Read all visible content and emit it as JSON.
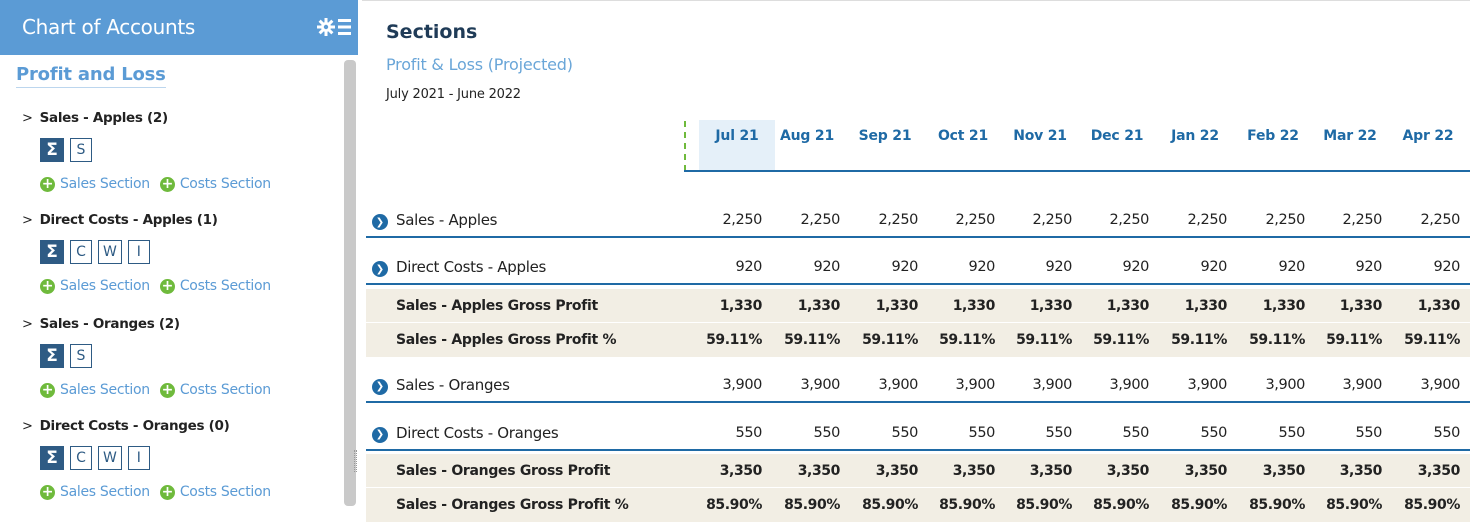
{
  "sidebar": {
    "header_title": "Chart of Accounts",
    "section_title": "Profit and Loss",
    "accounts": [
      {
        "name": "Sales - Apples (2)",
        "buttons": [
          "Σ",
          "S"
        ],
        "links": [
          "Sales Section",
          "Costs Section"
        ]
      },
      {
        "name": "Direct Costs - Apples (1)",
        "buttons": [
          "Σ",
          "C",
          "W",
          "I"
        ],
        "links": [
          "Sales Section",
          "Costs Section"
        ]
      },
      {
        "name": "Sales - Oranges (2)",
        "buttons": [
          "Σ",
          "S"
        ],
        "links": [
          "Sales Section",
          "Costs Section"
        ]
      },
      {
        "name": "Direct Costs - Oranges (0)",
        "buttons": [
          "Σ",
          "C",
          "W",
          "I"
        ],
        "links": [
          "Sales Section",
          "Costs Section"
        ]
      }
    ]
  },
  "main": {
    "title": "Sections",
    "subtitle": "Profit & Loss (Projected)",
    "date_range": "July 2021 - June 2022",
    "months": [
      "Jul 21",
      "Aug 21",
      "Sep 21",
      "Oct 21",
      "Nov 21",
      "Dec 21",
      "Jan 22",
      "Feb 22",
      "Mar 22",
      "Apr 22"
    ],
    "rows": [
      {
        "label": "Sales - Apples",
        "kind": "account",
        "values": [
          "2,250",
          "2,250",
          "2,250",
          "2,250",
          "2,250",
          "2,250",
          "2,250",
          "2,250",
          "2,250",
          "2,250"
        ]
      },
      {
        "label": "Direct Costs - Apples",
        "kind": "account",
        "values": [
          "920",
          "920",
          "920",
          "920",
          "920",
          "920",
          "920",
          "920",
          "920",
          "920"
        ]
      },
      {
        "label": "Sales - Apples Gross Profit",
        "kind": "gp",
        "values": [
          "1,330",
          "1,330",
          "1,330",
          "1,330",
          "1,330",
          "1,330",
          "1,330",
          "1,330",
          "1,330",
          "1,330"
        ]
      },
      {
        "label": "Sales - Apples Gross Profit %",
        "kind": "gp",
        "values": [
          "59.11%",
          "59.11%",
          "59.11%",
          "59.11%",
          "59.11%",
          "59.11%",
          "59.11%",
          "59.11%",
          "59.11%",
          "59.11%"
        ]
      },
      {
        "label": "Sales - Oranges",
        "kind": "account",
        "values": [
          "3,900",
          "3,900",
          "3,900",
          "3,900",
          "3,900",
          "3,900",
          "3,900",
          "3,900",
          "3,900",
          "3,900"
        ]
      },
      {
        "label": "Direct Costs - Oranges",
        "kind": "account",
        "values": [
          "550",
          "550",
          "550",
          "550",
          "550",
          "550",
          "550",
          "550",
          "550",
          "550"
        ]
      },
      {
        "label": "Sales - Oranges Gross Profit",
        "kind": "gp",
        "values": [
          "3,350",
          "3,350",
          "3,350",
          "3,350",
          "3,350",
          "3,350",
          "3,350",
          "3,350",
          "3,350",
          "3,350"
        ]
      },
      {
        "label": "Sales - Oranges Gross Profit %",
        "kind": "gp",
        "values": [
          "85.90%",
          "85.90%",
          "85.90%",
          "85.90%",
          "85.90%",
          "85.90%",
          "85.90%",
          "85.90%",
          "85.90%",
          "85.90%"
        ]
      }
    ]
  },
  "colors": {
    "header_blue": "#5b9bd5",
    "dark_blue": "#1f6aa5",
    "navy": "#2e5b84",
    "green": "#6fba3c",
    "gp_bg": "#f2eee4"
  }
}
